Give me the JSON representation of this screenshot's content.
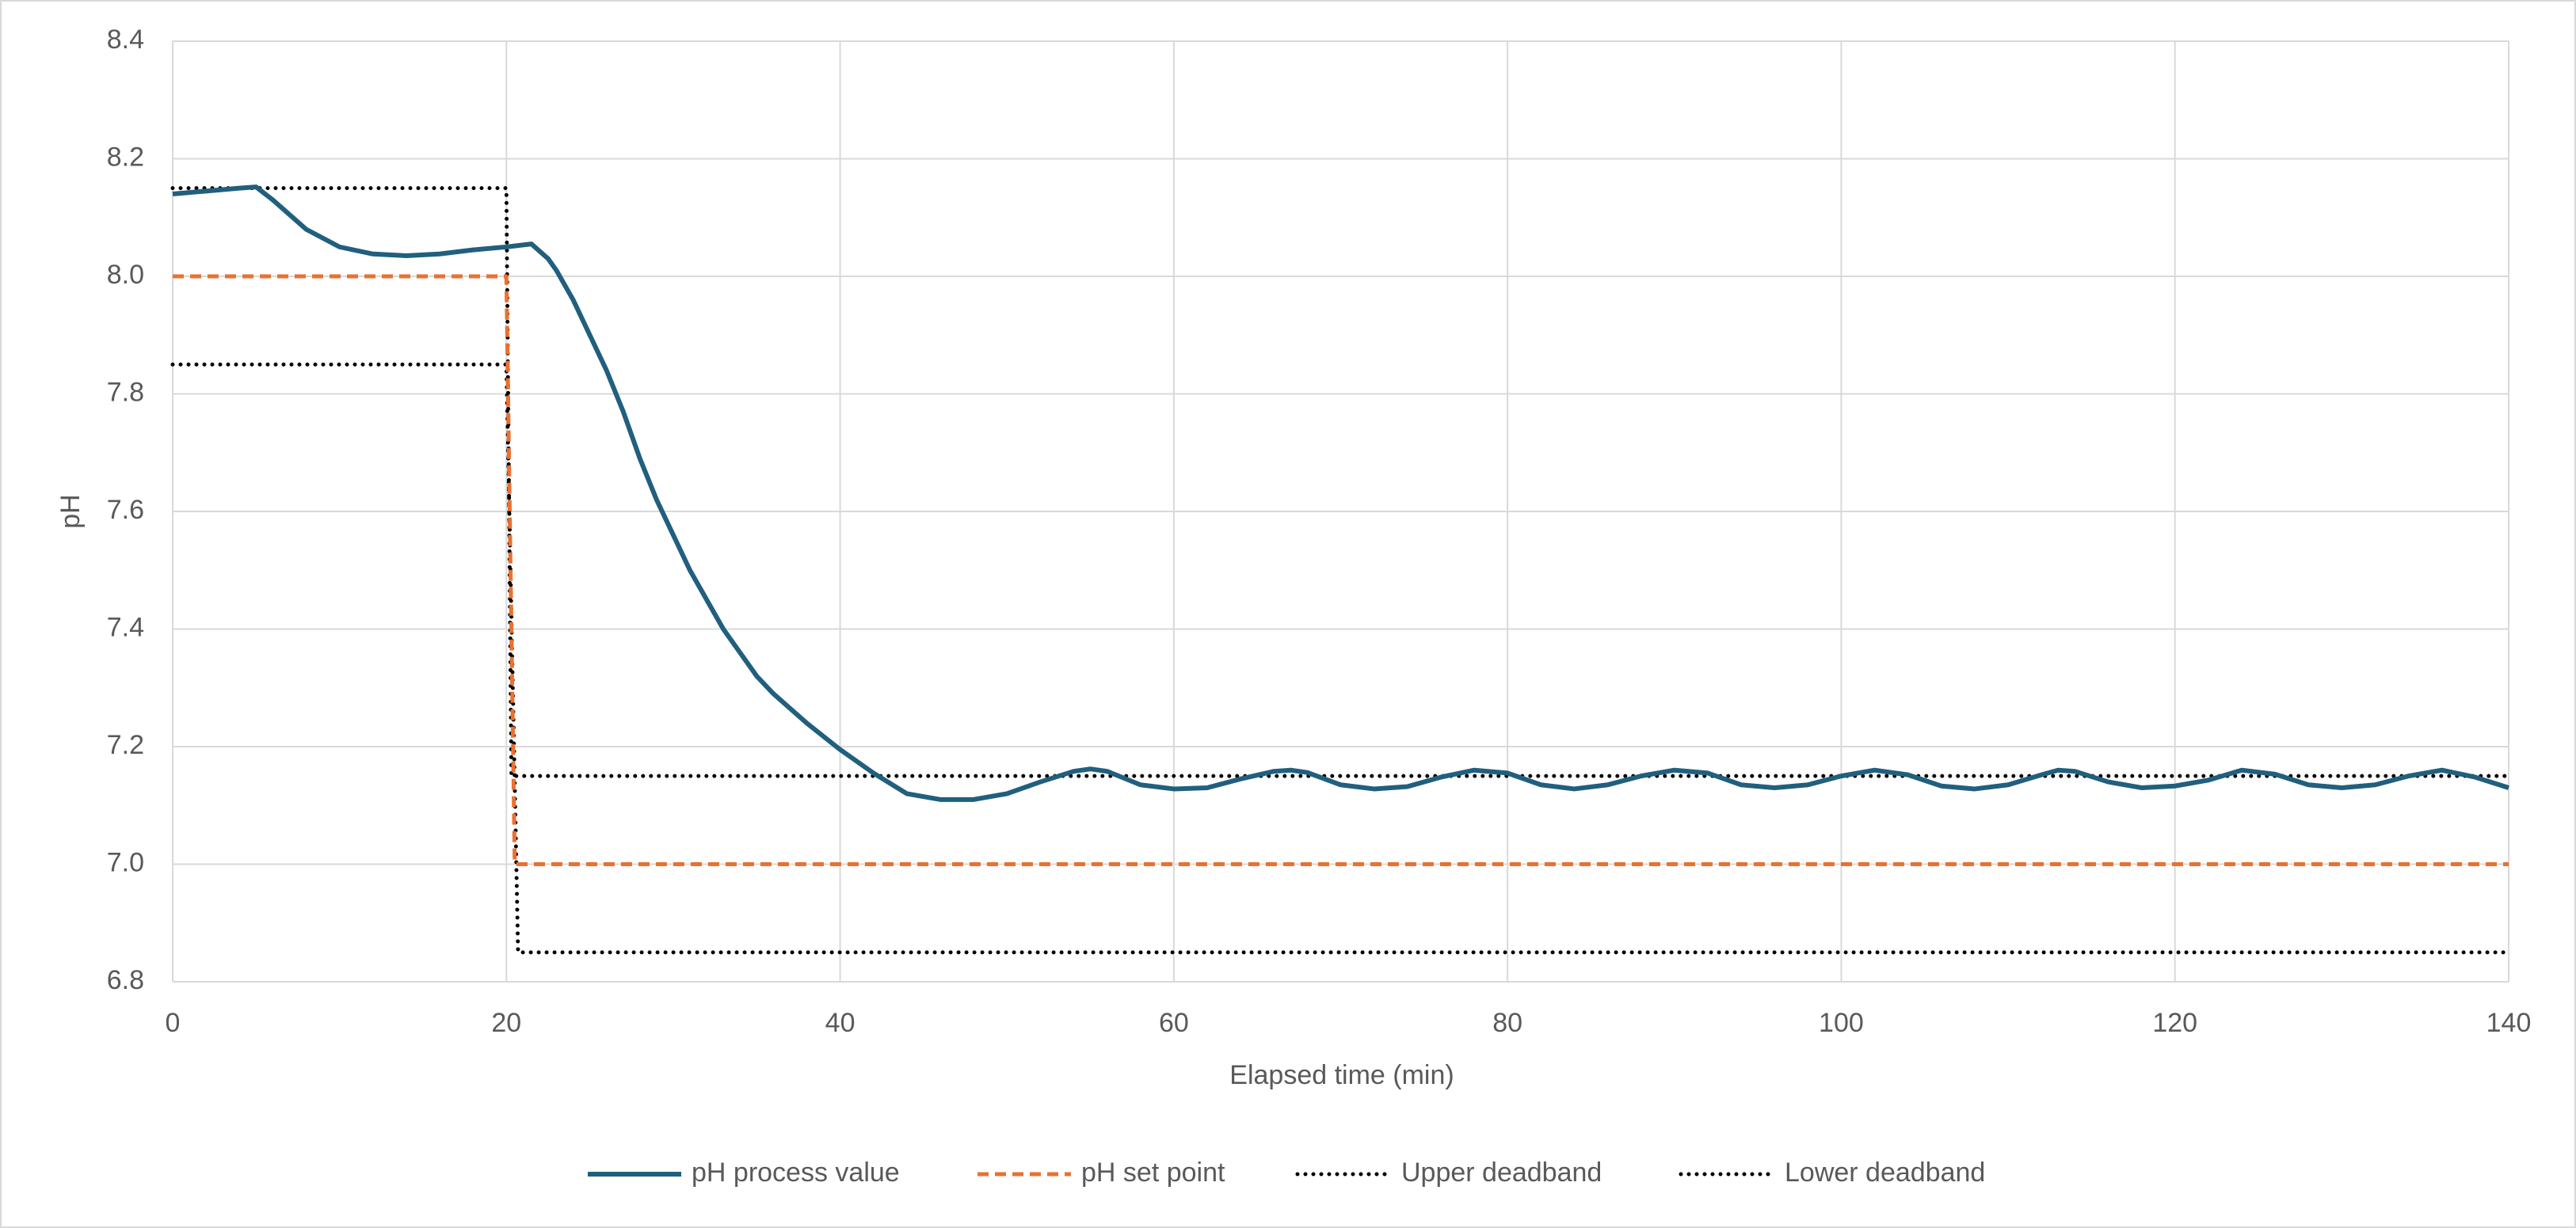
{
  "chart_data": {
    "type": "line",
    "x_label": "Elapsed time (min)",
    "y_label": "pH",
    "xlim": [
      0,
      140
    ],
    "xticks": [
      0,
      20,
      40,
      60,
      80,
      100,
      120,
      140
    ],
    "ylim": [
      6.8,
      8.4
    ],
    "yticks": [
      6.8,
      {
        "value": 7,
        "label": "7.0"
      },
      7.2,
      7.4,
      7.6,
      7.8,
      {
        "value": 8,
        "label": "8.0"
      },
      8.2,
      8.4
    ],
    "grid": true,
    "legend": "bottom",
    "series": [
      {
        "name": "pH process value",
        "color": "#215f7e",
        "style": "solid",
        "x": [
          0,
          2,
          4,
          5,
          6,
          8,
          10,
          12,
          14,
          16,
          18,
          20,
          21.5,
          22.5,
          23,
          24,
          25,
          26,
          27,
          28,
          29,
          30,
          31,
          32,
          33,
          34,
          35,
          36,
          38,
          40,
          42,
          44,
          46,
          48,
          50,
          52,
          54,
          55,
          56,
          58,
          60,
          62,
          64,
          66,
          67,
          68,
          70,
          72,
          74,
          76,
          78,
          80,
          82,
          84,
          86,
          88,
          90,
          92,
          94,
          96,
          98,
          100,
          102,
          104,
          106,
          108,
          110,
          112,
          113,
          114,
          116,
          118,
          120,
          122,
          124,
          126,
          128,
          130,
          132,
          134,
          136,
          138,
          140
        ],
        "values": [
          8.14,
          8.145,
          8.15,
          8.152,
          8.13,
          8.08,
          8.05,
          8.038,
          8.035,
          8.038,
          8.045,
          8.05,
          8.055,
          8.03,
          8.01,
          7.96,
          7.9,
          7.84,
          7.77,
          7.69,
          7.62,
          7.56,
          7.5,
          7.45,
          7.4,
          7.36,
          7.32,
          7.29,
          7.24,
          7.195,
          7.155,
          7.12,
          7.11,
          7.11,
          7.12,
          7.14,
          7.158,
          7.162,
          7.158,
          7.135,
          7.128,
          7.13,
          7.145,
          7.158,
          7.16,
          7.156,
          7.135,
          7.128,
          7.132,
          7.148,
          7.16,
          7.155,
          7.135,
          7.128,
          7.135,
          7.15,
          7.16,
          7.155,
          7.135,
          7.13,
          7.135,
          7.15,
          7.16,
          7.152,
          7.133,
          7.128,
          7.135,
          7.152,
          7.16,
          7.158,
          7.14,
          7.13,
          7.133,
          7.143,
          7.16,
          7.153,
          7.135,
          7.13,
          7.135,
          7.15,
          7.16,
          7.148,
          7.13
        ]
      },
      {
        "name": "pH set point",
        "color": "#e97132",
        "style": "dashed",
        "x": [
          0,
          20,
          20.5,
          140
        ],
        "values": [
          8,
          8,
          7,
          7
        ]
      },
      {
        "name": "Upper deadband",
        "color": "#000000",
        "style": "dotted",
        "x": [
          0,
          20,
          20.3,
          140
        ],
        "values": [
          8.15,
          8.15,
          7.15,
          7.15
        ]
      },
      {
        "name": "Lower deadband",
        "color": "#000000",
        "style": "dotted",
        "x": [
          0,
          20,
          20.7,
          140
        ],
        "values": [
          7.85,
          7.85,
          6.85,
          6.85
        ]
      }
    ]
  }
}
